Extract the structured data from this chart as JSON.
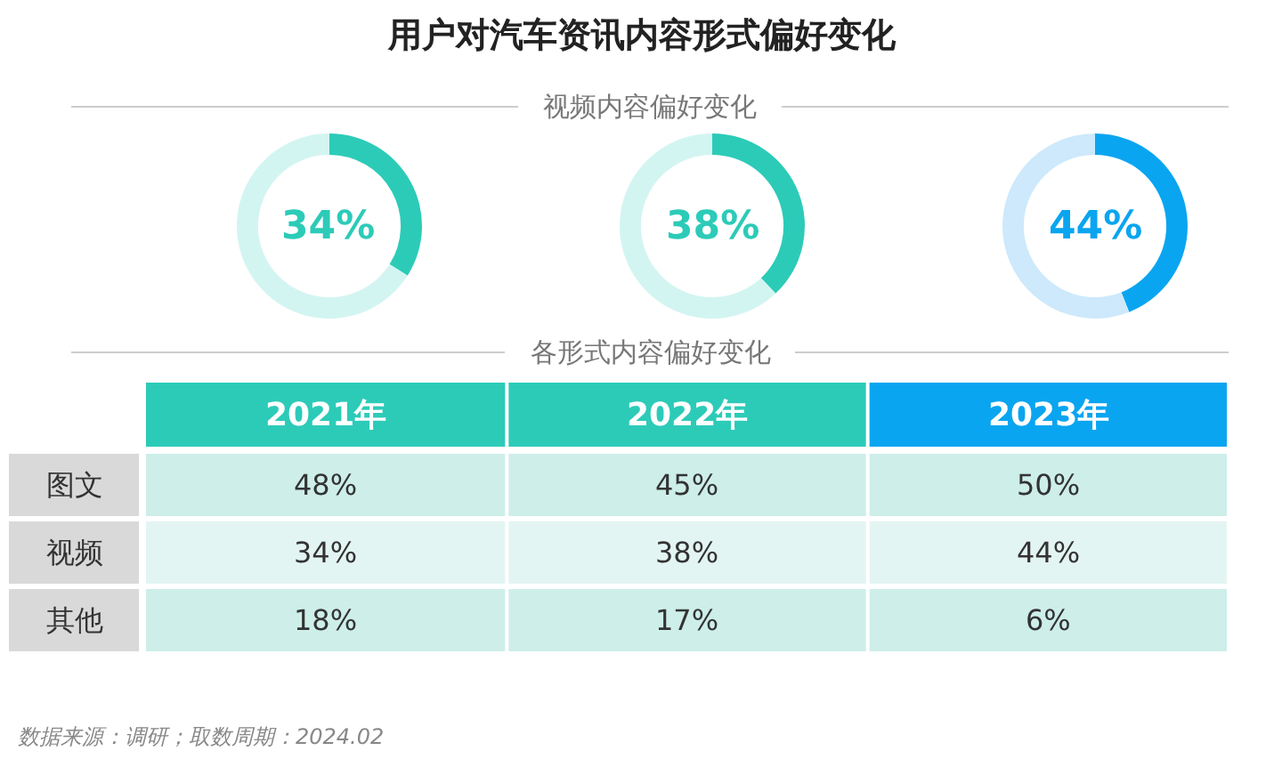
{
  "chart_data": [
    {
      "type": "donut",
      "categories": [
        null,
        null
      ],
      "values": [
        34,
        66
      ],
      "colors": [
        "#2ccbb8",
        "#d3f5f1"
      ],
      "annotations": [
        "34%"
      ]
    },
    {
      "type": "donut",
      "title": "用户对汽车资讯内容形式偏好变化",
      "subtitle": "视频内容偏好变化",
      "categories": [
        null,
        null
      ],
      "values": [
        38,
        62
      ],
      "colors": [
        "#2ccbb8",
        "#d3f5f1"
      ],
      "annotations": [
        "38%"
      ]
    },
    {
      "type": "donut",
      "categories": [
        null,
        null
      ],
      "values": [
        44,
        56
      ],
      "colors": [
        "#0aa5f0",
        "#cde9fb"
      ],
      "annotations": [
        "44%"
      ]
    },
    {
      "type": "other",
      "title": "各形式内容偏好变化",
      "categories": [
        "2021年",
        "2022年",
        "2023年"
      ],
      "y_categories": [
        "图文",
        "视频",
        "其他"
      ],
      "cell_labels": [
        [
          "48%",
          "45%",
          "50%"
        ],
        [
          "34%",
          "38%",
          "44%"
        ],
        [
          "18%",
          "17%",
          "6%"
        ]
      ],
      "annotations": [
        "数据来源：调研；取数周期：2024.02"
      ]
    }
  ]
}
